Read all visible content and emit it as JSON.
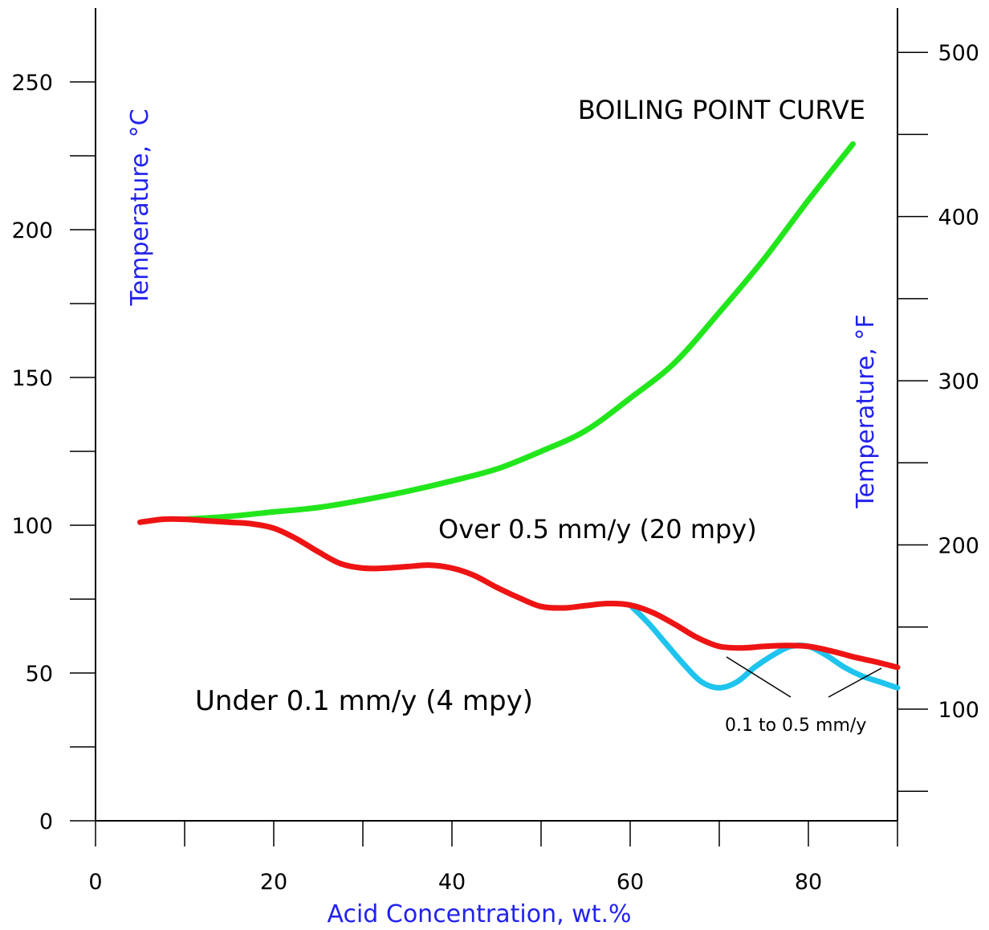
{
  "chart_data": {
    "type": "line",
    "title": "",
    "xlabel": "Acid Concentration, wt.%",
    "ylabel_left": "Temperature, °C",
    "ylabel_right": "Temperature, °F",
    "xlim": [
      0,
      90
    ],
    "ylim_left": [
      0,
      275
    ],
    "ylim_right": [
      32,
      527
    ],
    "x_ticks": [
      0,
      20,
      40,
      60,
      80
    ],
    "x_minor_ticks": [
      10,
      30,
      50,
      70,
      90
    ],
    "y_left_ticks": [
      0,
      50,
      100,
      150,
      200,
      250
    ],
    "y_left_minor_ticks": [
      25,
      75,
      125,
      175,
      225
    ],
    "y_right_ticks": [
      100,
      200,
      300,
      400,
      500
    ],
    "y_right_minor_ticks": [
      50,
      150,
      250,
      350,
      450
    ],
    "grid": false,
    "series": [
      {
        "name": "BOILING POINT CURVE",
        "color": "#22e61c",
        "x": [
          10,
          15,
          20,
          25,
          30,
          35,
          40,
          45,
          50,
          55,
          60,
          65,
          70,
          75,
          80,
          85
        ],
        "y": [
          102,
          103,
          104.5,
          106,
          108.5,
          111.5,
          115,
          119,
          125,
          132,
          143,
          155,
          172,
          190,
          210,
          229
        ]
      },
      {
        "name": "",
        "color": "#ee1414",
        "x": [
          5,
          7.5,
          10,
          12.5,
          15,
          17.5,
          20,
          22.5,
          25,
          27.5,
          30,
          32.5,
          35,
          37.5,
          40,
          42.5,
          45,
          47.5,
          50,
          52.5,
          55,
          57.5,
          60,
          62.5,
          65,
          67.5,
          70,
          72.5,
          75,
          77.5,
          80,
          82.5,
          85,
          87.5,
          90
        ],
        "y": [
          101,
          102,
          102,
          101.5,
          101,
          100.5,
          99,
          95.5,
          91,
          87,
          85.5,
          85.5,
          86,
          86.5,
          85.5,
          83,
          79,
          75.5,
          72.5,
          72,
          72.8,
          73.5,
          73,
          70.5,
          66.5,
          62,
          59,
          58.5,
          59,
          59.3,
          59,
          57.5,
          55.5,
          53.8,
          51.9
        ]
      },
      {
        "name": "",
        "color": "#1ec4ee",
        "x": [
          60,
          62,
          64,
          66,
          68,
          70,
          72,
          74,
          76,
          78,
          80,
          82,
          84,
          86,
          88,
          90
        ],
        "y": [
          73,
          67,
          60,
          53,
          47,
          45,
          47,
          52,
          56,
          59,
          59,
          56,
          52,
          49,
          47,
          45
        ]
      }
    ],
    "annotations": [
      {
        "text": "BOILING POINT CURVE",
        "color": "#22e61c"
      },
      {
        "text": "Over 0.5 mm/y (20 mpy)"
      },
      {
        "text": "Under 0.1 mm/y (4 mpy)"
      },
      {
        "text": "0.1 to 0.5 mm/y"
      }
    ],
    "label_colors": {
      "axis_title": "#2222ee",
      "text": "#000000",
      "axis": "#000000"
    }
  }
}
